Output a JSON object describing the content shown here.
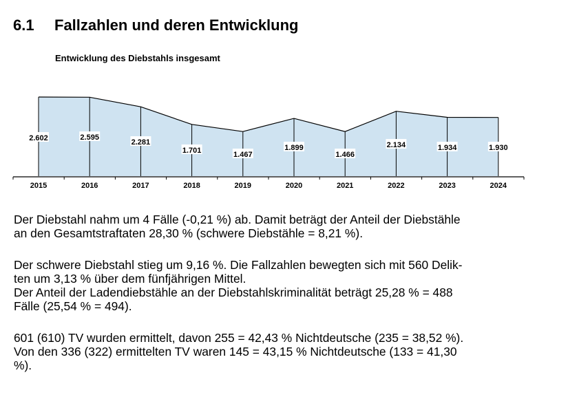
{
  "heading": {
    "number": "6.1",
    "text": "Fallzahlen und deren Entwicklung"
  },
  "chart_data": {
    "type": "area",
    "title": "Entwicklung des Diebstahls insgesamt",
    "xlabel": "",
    "ylabel": "",
    "categories": [
      "2015",
      "2016",
      "2017",
      "2018",
      "2019",
      "2020",
      "2021",
      "2022",
      "2023",
      "2024"
    ],
    "values": [
      2602,
      2595,
      2281,
      1701,
      1467,
      1899,
      1466,
      2134,
      1934,
      1930
    ],
    "data_labels": [
      "2.602",
      "2.595",
      "2.281",
      "1.701",
      "1.467",
      "1.899",
      "1.466",
      "2.134",
      "1.934",
      "1.930"
    ],
    "ylim": [
      0,
      2700
    ],
    "grid": false,
    "legend": "none",
    "fill_color": "#cfe3f1",
    "line_color": "#000000"
  },
  "paragraphs": [
    [
      "Der Diebstahl nahm um 4 Fälle (-0,21 %) ab. Damit beträgt der Anteil der Diebstähle",
      "an den Gesamtstraftaten 28,30 % (schwere Diebstähle = 8,21 %)."
    ],
    [
      "Der schwere Diebstahl stieg um 9,16 %. Die Fallzahlen bewegten sich mit 560 Delik-",
      "ten um 3,13 % über dem fünfjährigen Mittel.",
      "Der Anteil der Ladendiebstähle an der Diebstahlskriminalität beträgt 25,28 % = 488",
      "Fälle (25,54 % = 494)."
    ],
    [
      "601 (610) TV wurden ermittelt, davon 255 = 42,43 % Nichtdeutsche (235 = 38,52 %).",
      "Von den 336 (322) ermittelten TV waren 145 = 43,15 % Nichtdeutsche (133 = 41,30",
      "%)."
    ]
  ]
}
